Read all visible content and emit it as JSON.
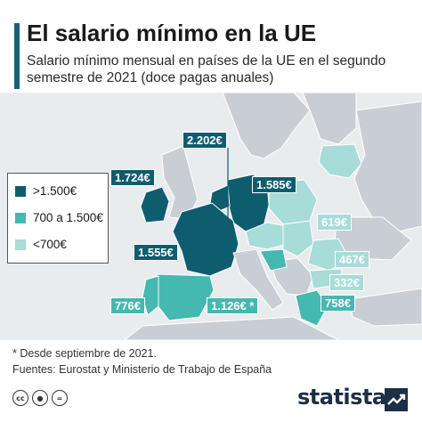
{
  "header": {
    "title": "El salario mínimo en la UE",
    "subtitle": "Salario mínimo mensual en países de la UE en el segundo semestre de 2021 (doce pagas anuales)"
  },
  "legend": {
    "items": [
      {
        "label": ">1.500€",
        "color": "#0e5d6e"
      },
      {
        "label": "700 a 1.500€",
        "color": "#45b8b0"
      },
      {
        "label": "<700€",
        "color": "#a7dcd8"
      }
    ]
  },
  "map": {
    "colors": {
      "ocean": "#e9ecef",
      "no_data_land": "#c9ced4",
      "high": "#0e5d6e",
      "mid": "#45b8b0",
      "low": "#a7dcd8",
      "border": "#ffffff"
    },
    "labels": [
      {
        "country_group": "luxembourg",
        "text": "2.202€",
        "category": "high"
      },
      {
        "country_group": "ireland",
        "text": "1.724€",
        "category": "high"
      },
      {
        "country_group": "germany",
        "text": "1.585€",
        "category": "high"
      },
      {
        "country_group": "france",
        "text": "1.555€",
        "category": "high"
      },
      {
        "country_group": "portugal",
        "text": "776€",
        "category": "mid"
      },
      {
        "country_group": "spain",
        "text": "1.126€ *",
        "category": "mid"
      },
      {
        "country_group": "poland",
        "text": "619€",
        "category": "low"
      },
      {
        "country_group": "hungary",
        "text": "467€",
        "category": "low"
      },
      {
        "country_group": "bulgaria",
        "text": "332€",
        "category": "low"
      },
      {
        "country_group": "greece",
        "text": "758€",
        "category": "mid"
      }
    ]
  },
  "footer": {
    "footnote": "* Desde septiembre de 2021.",
    "sources": "Fuentes: Eurostat y Ministerio de Trabajo de España",
    "license_icons": [
      "cc-icon",
      "person-icon",
      "equals-icon"
    ],
    "brand": "statista"
  }
}
